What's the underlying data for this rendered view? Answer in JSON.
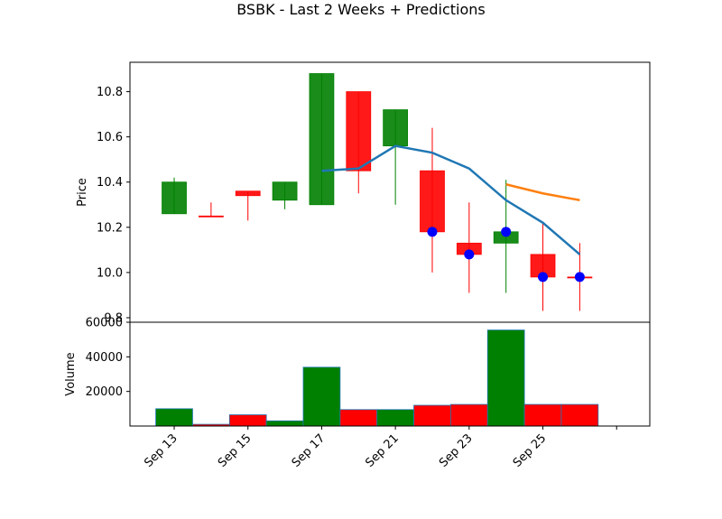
{
  "chart_data": {
    "type": "candlestick",
    "title": "BSBK - Last 2 Weeks + Predictions",
    "price_panel": {
      "ylabel": "Price",
      "ylim": [
        9.78,
        10.93
      ],
      "yticks": [
        9.8,
        10.0,
        10.2,
        10.4,
        10.6,
        10.8
      ],
      "ytick_labels": [
        "9.8",
        "10.0",
        "10.2",
        "10.4",
        "10.6",
        "10.8"
      ]
    },
    "volume_panel": {
      "ylabel": "Volume",
      "ylim": [
        0,
        60000
      ],
      "yticks": [
        20000,
        40000,
        60000
      ],
      "ytick_labels": [
        "20000",
        "40000",
        "60000"
      ]
    },
    "xlim": [
      -1.2,
      12.9
    ],
    "xticks": [
      0,
      2,
      4,
      6,
      8,
      10,
      12
    ],
    "xtick_labels": [
      "Sep 13",
      "Sep 15",
      "Sep 17",
      "Sep 21",
      "Sep 23",
      "Sep 25",
      ""
    ],
    "candles": [
      {
        "i": 0,
        "open": 10.26,
        "high": 10.42,
        "low": 10.26,
        "close": 10.4,
        "color": "green"
      },
      {
        "i": 1,
        "open": 10.25,
        "high": 10.31,
        "low": 10.25,
        "close": 10.25,
        "color": "red"
      },
      {
        "i": 2,
        "open": 10.36,
        "high": 10.36,
        "low": 10.23,
        "close": 10.34,
        "color": "red"
      },
      {
        "i": 3,
        "open": 10.32,
        "high": 10.4,
        "low": 10.28,
        "close": 10.4,
        "color": "green"
      },
      {
        "i": 4,
        "open": 10.3,
        "high": 10.88,
        "low": 10.3,
        "close": 10.88,
        "color": "green"
      },
      {
        "i": 5,
        "open": 10.8,
        "high": 10.8,
        "low": 10.35,
        "close": 10.45,
        "color": "red"
      },
      {
        "i": 6,
        "open": 10.56,
        "high": 10.72,
        "low": 10.3,
        "close": 10.72,
        "color": "green"
      },
      {
        "i": 7,
        "open": 10.45,
        "high": 10.64,
        "low": 10.0,
        "close": 10.18,
        "color": "red"
      },
      {
        "i": 8,
        "open": 10.13,
        "high": 10.31,
        "low": 9.91,
        "close": 10.08,
        "color": "red"
      },
      {
        "i": 9,
        "open": 10.13,
        "high": 10.41,
        "low": 9.91,
        "close": 10.18,
        "color": "green"
      },
      {
        "i": 10,
        "open": 10.08,
        "high": 10.22,
        "low": 9.83,
        "close": 9.98,
        "color": "red"
      },
      {
        "i": 11,
        "open": 9.98,
        "high": 10.13,
        "low": 9.83,
        "close": 9.98,
        "color": "red"
      }
    ],
    "moving_average": {
      "color": "#1f77b4",
      "x": [
        4,
        5,
        6,
        7,
        8,
        9,
        10,
        11
      ],
      "y": [
        10.45,
        10.46,
        10.56,
        10.53,
        10.46,
        10.32,
        10.22,
        10.08
      ]
    },
    "prediction_line": {
      "color": "#ff7f0e",
      "x": [
        9,
        10,
        11
      ],
      "y": [
        10.39,
        10.35,
        10.32
      ]
    },
    "markers": {
      "color": "#0000ff",
      "x": [
        7,
        8,
        9,
        10,
        11
      ],
      "y": [
        10.18,
        10.08,
        10.18,
        9.98,
        9.98
      ]
    },
    "volume": [
      {
        "i": 0,
        "value": 10000,
        "color": "green"
      },
      {
        "i": 1,
        "value": 1000,
        "color": "red"
      },
      {
        "i": 2,
        "value": 6500,
        "color": "red"
      },
      {
        "i": 3,
        "value": 3000,
        "color": "green"
      },
      {
        "i": 4,
        "value": 34000,
        "color": "green"
      },
      {
        "i": 5,
        "value": 9500,
        "color": "red"
      },
      {
        "i": 6,
        "value": 9500,
        "color": "green"
      },
      {
        "i": 7,
        "value": 12000,
        "color": "red"
      },
      {
        "i": 8,
        "value": 12500,
        "color": "red"
      },
      {
        "i": 9,
        "value": 55500,
        "color": "green"
      },
      {
        "i": 10,
        "value": 12500,
        "color": "red"
      },
      {
        "i": 11,
        "value": 12500,
        "color": "red"
      }
    ],
    "colors": {
      "green": "#008000",
      "red": "#ff0000"
    }
  }
}
